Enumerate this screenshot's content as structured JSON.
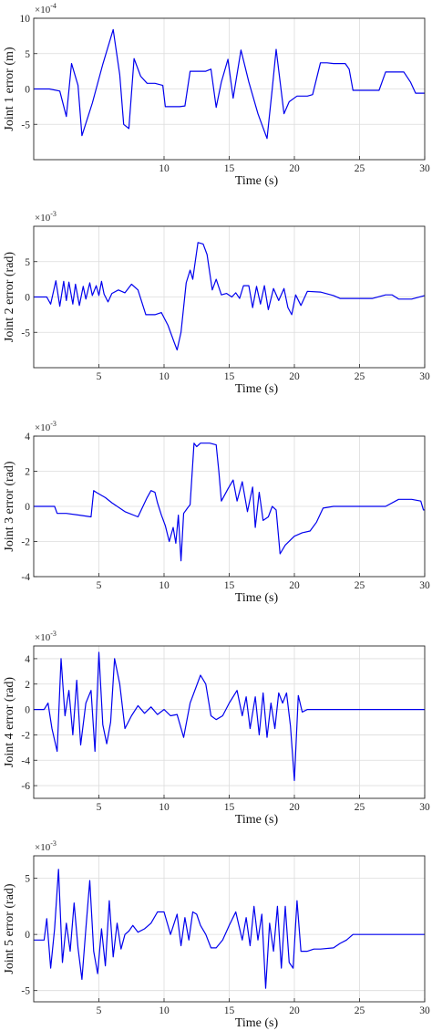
{
  "chart_data": [
    {
      "type": "line",
      "xlabel": "Time (s)",
      "ylabel": "Joint 1 error (m)",
      "exponent": "-4",
      "xlim": [
        0,
        30
      ],
      "ylim": [
        -10,
        10
      ],
      "xticks": [
        10,
        15,
        20,
        25,
        30
      ],
      "yticks": [
        -5,
        0,
        5,
        10
      ],
      "grid": true,
      "color": "#0000ee",
      "series": [
        {
          "x": [
            0.0,
            1.2,
            2.0,
            2.5,
            2.9,
            3.4,
            3.7,
            4.5,
            5.3,
            6.1,
            6.6,
            6.9,
            7.3,
            7.7,
            8.2,
            8.7,
            9.3,
            9.9,
            10.1,
            11.2,
            11.6,
            12.0,
            12.5,
            13.2,
            13.6,
            14.0,
            14.4,
            14.9,
            15.3,
            15.9,
            16.5,
            17.2,
            17.9,
            18.3,
            18.6,
            19.2,
            19.6,
            20.2,
            21.0,
            21.4,
            22.0,
            22.5,
            23.0,
            23.9,
            24.2,
            24.5,
            25.0,
            26.0,
            26.5,
            27.0,
            28.4,
            28.9,
            29.3,
            30.0
          ],
          "y": [
            0,
            0,
            -0.3,
            -3.9,
            3.6,
            0.5,
            -6.6,
            -2.0,
            3.5,
            8.4,
            2.0,
            -5.0,
            -5.6,
            4.3,
            1.8,
            0.8,
            0.8,
            0.5,
            -2.5,
            -2.5,
            -2.4,
            2.5,
            2.5,
            2.5,
            2.8,
            -2.6,
            1.0,
            4.2,
            -1.3,
            5.5,
            1.0,
            -3.5,
            -7.0,
            0.0,
            5.6,
            -3.5,
            -1.8,
            -1.0,
            -1.0,
            -0.8,
            3.7,
            3.7,
            3.6,
            3.6,
            2.8,
            -0.2,
            -0.2,
            -0.2,
            -0.2,
            2.4,
            2.4,
            1.0,
            -0.6,
            -0.6
          ]
        }
      ]
    },
    {
      "type": "line",
      "xlabel": "Time (s)",
      "ylabel": "Joint 2 error (rad)",
      "exponent": "-3",
      "xlim": [
        0,
        30
      ],
      "ylim": [
        -10,
        10
      ],
      "xticks": [
        5,
        10,
        15,
        20,
        25,
        30
      ],
      "yticks": [
        -5,
        0,
        5
      ],
      "grid": true,
      "color": "#0000ee",
      "series": [
        {
          "x": [
            0.0,
            0.6,
            1.0,
            1.3,
            1.7,
            2.0,
            2.3,
            2.5,
            2.7,
            3.0,
            3.2,
            3.5,
            3.8,
            4.0,
            4.3,
            4.5,
            4.8,
            5.0,
            5.2,
            5.4,
            5.7,
            6.0,
            6.5,
            7.0,
            7.5,
            8.0,
            8.6,
            9.3,
            9.8,
            10.3,
            10.8,
            11.0,
            11.3,
            11.7,
            12.0,
            12.2,
            12.6,
            13.0,
            13.3,
            13.7,
            14.0,
            14.4,
            14.8,
            15.2,
            15.5,
            15.8,
            16.1,
            16.5,
            16.8,
            17.1,
            17.4,
            17.7,
            18.0,
            18.4,
            18.8,
            19.2,
            19.5,
            19.8,
            20.1,
            20.5,
            21.0,
            22.0,
            23.0,
            23.5,
            24.0,
            25.0,
            26.0,
            27.0,
            27.5,
            28.0,
            29.0,
            30.0
          ],
          "y": [
            0,
            0,
            0,
            -1.0,
            2.3,
            -1.3,
            2.2,
            -0.5,
            2.1,
            -1.0,
            1.8,
            -1.2,
            1.5,
            -0.3,
            2.0,
            0.2,
            1.6,
            0.2,
            2.2,
            0.4,
            -0.7,
            0.5,
            1.0,
            0.6,
            1.8,
            1.0,
            -2.5,
            -2.5,
            -2.2,
            -4.0,
            -6.5,
            -7.5,
            -5.0,
            2.0,
            3.8,
            2.5,
            7.7,
            7.5,
            6.0,
            1.0,
            2.5,
            0.3,
            0.5,
            0.0,
            0.6,
            -0.2,
            1.6,
            1.6,
            -1.5,
            1.5,
            -1.0,
            1.6,
            -1.8,
            1.2,
            -0.5,
            1.2,
            -1.5,
            -2.5,
            0.3,
            -1.2,
            0.8,
            0.7,
            0.2,
            -0.2,
            -0.2,
            -0.2,
            -0.2,
            0.3,
            0.3,
            -0.3,
            -0.3,
            0.2
          ]
        }
      ]
    },
    {
      "type": "line",
      "xlabel": "Time (s)",
      "ylabel": "Joint 3 error (rad)",
      "exponent": "-3",
      "xlim": [
        0,
        30
      ],
      "ylim": [
        -4,
        4
      ],
      "xticks": [
        5,
        10,
        15,
        20,
        25,
        30
      ],
      "yticks": [
        -4,
        -2,
        0,
        2,
        4
      ],
      "grid": true,
      "color": "#0000ee",
      "series": [
        {
          "x": [
            0.0,
            1.6,
            1.8,
            2.5,
            3.5,
            4.4,
            4.6,
            4.8,
            5.5,
            6.0,
            7.0,
            8.0,
            8.7,
            9.0,
            9.3,
            9.5,
            9.8,
            10.1,
            10.4,
            10.7,
            10.9,
            11.1,
            11.3,
            11.5,
            11.8,
            12.0,
            12.3,
            12.5,
            12.8,
            13.5,
            14.0,
            14.2,
            14.4,
            14.9,
            15.3,
            15.6,
            16.0,
            16.4,
            16.8,
            17.0,
            17.3,
            17.6,
            18.0,
            18.3,
            18.6,
            18.9,
            19.3,
            20.0,
            20.6,
            21.2,
            21.7,
            22.2,
            23.0,
            24.0,
            25.0,
            26.0,
            27.0,
            28.0,
            29.0,
            29.7,
            29.9,
            30.0
          ],
          "y": [
            0,
            0,
            -0.4,
            -0.4,
            -0.5,
            -0.6,
            0.9,
            0.8,
            0.5,
            0.2,
            -0.3,
            -0.6,
            0.5,
            0.9,
            0.8,
            0.2,
            -0.5,
            -1.1,
            -2.0,
            -1.2,
            -2.1,
            -0.5,
            -3.1,
            -0.4,
            -0.1,
            0.1,
            3.6,
            3.4,
            3.6,
            3.6,
            3.5,
            2.0,
            0.3,
            1.0,
            1.5,
            0.3,
            1.4,
            -0.3,
            1.1,
            -1.2,
            0.8,
            -0.8,
            -0.6,
            0.0,
            -0.2,
            -2.7,
            -2.2,
            -1.7,
            -1.5,
            -1.4,
            -0.9,
            -0.1,
            0.0,
            0.0,
            0.0,
            0.0,
            0.0,
            0.4,
            0.4,
            0.3,
            -0.2,
            -0.2
          ]
        }
      ]
    },
    {
      "type": "line",
      "xlabel": "Time (s)",
      "ylabel": "Joint 4 error (rad)",
      "exponent": "-3",
      "xlim": [
        0,
        30
      ],
      "ylim": [
        -7,
        5
      ],
      "xticks": [
        5,
        10,
        15,
        20,
        25,
        30
      ],
      "yticks": [
        -6,
        -4,
        -2,
        0,
        2,
        4
      ],
      "grid": true,
      "color": "#0000ee",
      "series": [
        {
          "x": [
            0.0,
            0.8,
            1.1,
            1.4,
            1.8,
            2.1,
            2.4,
            2.7,
            3.0,
            3.3,
            3.6,
            4.0,
            4.4,
            4.7,
            5.0,
            5.3,
            5.6,
            5.9,
            6.2,
            6.6,
            7.0,
            7.5,
            8.0,
            8.5,
            9.0,
            9.5,
            10.0,
            10.5,
            11.0,
            11.5,
            12.0,
            12.8,
            13.2,
            13.6,
            14.0,
            14.5,
            15.0,
            15.6,
            16.0,
            16.3,
            16.6,
            17.0,
            17.3,
            17.6,
            17.9,
            18.2,
            18.5,
            18.8,
            19.1,
            19.4,
            19.7,
            20.0,
            20.3,
            20.6,
            21.0,
            22.0,
            25.0,
            30.0
          ],
          "y": [
            0,
            0,
            0.5,
            -1.5,
            -3.3,
            4.0,
            -0.5,
            1.5,
            -2.0,
            2.3,
            -2.8,
            0.5,
            1.5,
            -3.3,
            4.5,
            -1.2,
            -2.7,
            -1.0,
            4.0,
            2.0,
            -1.5,
            -0.5,
            0.3,
            -0.3,
            0.2,
            -0.4,
            0.0,
            -0.5,
            -0.4,
            -2.2,
            0.5,
            2.7,
            2.0,
            -0.5,
            -0.8,
            -0.5,
            0.5,
            1.5,
            -0.5,
            1.0,
            -1.5,
            1.0,
            -2.0,
            1.3,
            -2.2,
            0.5,
            -1.5,
            1.3,
            0.5,
            1.3,
            -1.3,
            -5.6,
            1.1,
            -0.2,
            0.0,
            0.0,
            0.0,
            0.0
          ]
        }
      ]
    },
    {
      "type": "line",
      "xlabel": "Time (s)",
      "ylabel": "Joint 5 error (rad)",
      "exponent": "-3",
      "xlim": [
        0,
        30
      ],
      "ylim": [
        -6,
        7
      ],
      "xticks": [
        5,
        10,
        15,
        20,
        25,
        30
      ],
      "yticks": [
        -5,
        0,
        5
      ],
      "grid": true,
      "color": "#0000ee",
      "series": [
        {
          "x": [
            0.0,
            0.8,
            1.0,
            1.3,
            1.6,
            1.9,
            2.2,
            2.5,
            2.8,
            3.1,
            3.4,
            3.7,
            4.0,
            4.3,
            4.6,
            4.9,
            5.2,
            5.5,
            5.8,
            6.1,
            6.4,
            6.7,
            7.0,
            7.3,
            7.6,
            8.0,
            8.5,
            9.0,
            9.5,
            10.0,
            10.5,
            11.0,
            11.3,
            11.6,
            11.9,
            12.2,
            12.5,
            12.8,
            13.2,
            13.6,
            14.0,
            14.5,
            15.0,
            15.5,
            16.0,
            16.3,
            16.6,
            16.9,
            17.2,
            17.5,
            17.8,
            18.1,
            18.4,
            18.7,
            19.0,
            19.3,
            19.6,
            19.9,
            20.2,
            20.5,
            20.8,
            21.0,
            21.5,
            22.0,
            23.0,
            23.5,
            24.0,
            24.5,
            25.0,
            30.0
          ],
          "y": [
            -0.5,
            -0.5,
            1.4,
            -3.0,
            0.5,
            5.8,
            -2.5,
            1.0,
            -1.5,
            2.8,
            -1.2,
            -4.0,
            0.5,
            4.8,
            -1.5,
            -3.5,
            0.5,
            -2.8,
            3.0,
            -2.0,
            1.0,
            -1.3,
            0.0,
            0.3,
            0.8,
            0.2,
            0.5,
            1.0,
            2.0,
            2.0,
            0.0,
            1.8,
            -1.0,
            1.5,
            -0.5,
            2.0,
            1.8,
            0.8,
            0.0,
            -1.2,
            -1.2,
            -0.5,
            0.8,
            2.0,
            -0.5,
            1.5,
            -1.0,
            2.5,
            -0.5,
            1.8,
            -4.8,
            1.0,
            -1.5,
            2.5,
            -3.0,
            2.5,
            -2.5,
            -3.0,
            3.0,
            -1.5,
            -1.5,
            -1.5,
            -1.3,
            -1.3,
            -1.2,
            -0.8,
            -0.5,
            0.0,
            0.0,
            0.0
          ]
        }
      ]
    }
  ]
}
